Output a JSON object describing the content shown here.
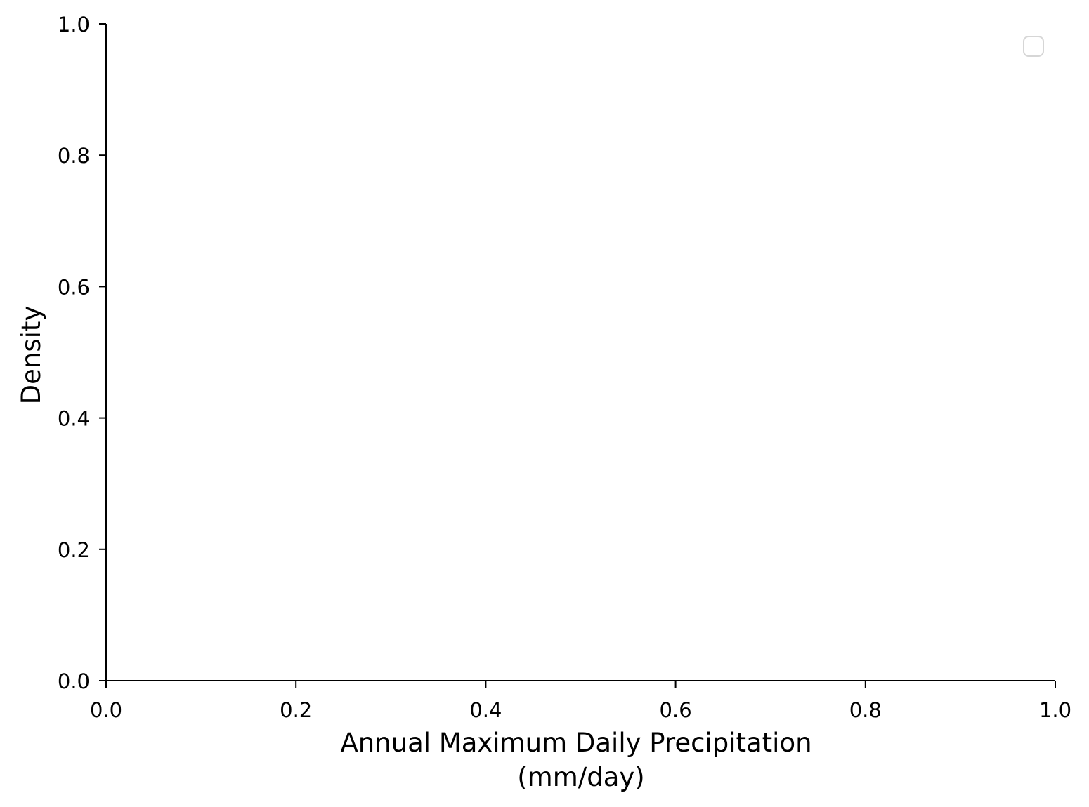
{
  "chart_data": {
    "type": "line",
    "title": "",
    "xlabel_lines": [
      "Annual Maximum Daily Precipitation",
      "(mm/day)"
    ],
    "ylabel": "Density",
    "xlim": [
      0.0,
      1.0
    ],
    "ylim": [
      0.0,
      1.0
    ],
    "x_ticks": [
      "0.0",
      "0.2",
      "0.4",
      "0.6",
      "0.8",
      "1.0"
    ],
    "y_ticks": [
      "0.0",
      "0.2",
      "0.4",
      "0.6",
      "0.8",
      "1.0"
    ],
    "series": [],
    "grid": false,
    "legend": {
      "placement": "top-right",
      "entries": []
    },
    "spines": [
      "left",
      "bottom"
    ]
  }
}
